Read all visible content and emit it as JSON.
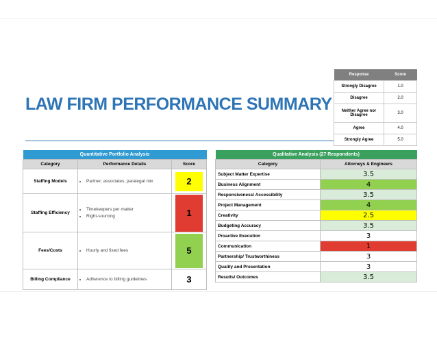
{
  "title": "LAW FIRM PERFORMANCE SUMMARY",
  "colors": {
    "title": "#2e75b6",
    "score_green_light": "#d8ecd9",
    "score_green": "#92d050",
    "score_yellow": "#ffff00",
    "score_red": "#e03c31"
  },
  "score_key": {
    "headers": [
      "Response",
      "Score"
    ],
    "rows": [
      {
        "response": "Strongly Disagree",
        "score": "1.0"
      },
      {
        "response": "Disagree",
        "score": "2.0"
      },
      {
        "response": "Neither Agree nor Disagree",
        "score": "3.0"
      },
      {
        "response": "Agree",
        "score": "4.0"
      },
      {
        "response": "Strongly Agree",
        "score": "5.0"
      }
    ]
  },
  "quantitative": {
    "title": "Quantitative  Portfolio Analysis",
    "headers": [
      "Category",
      "Performance Details",
      "Score"
    ],
    "rows": [
      {
        "category": "Staffing Models",
        "details": [
          "Partner, associates, paralegal mix"
        ],
        "score": "2",
        "color": "#ffff00"
      },
      {
        "category": "Staffing Efficiency",
        "details": [
          "Timekeepers per matter",
          "Right-sourcing"
        ],
        "score": "1",
        "color": "#e03c31"
      },
      {
        "category": "Fees/Costs",
        "details": [
          "Hourly and fixed fees"
        ],
        "score": "5",
        "color": "#92d050"
      },
      {
        "category": "Billing Compliance",
        "details": [
          "Adherence to billing guidelines"
        ],
        "score": "3",
        "color": "#ffffff"
      }
    ]
  },
  "qualitative": {
    "title": "Qualitative Analysis (27 Respondents)",
    "headers": [
      "Category",
      "Attorneys & Engineers"
    ],
    "rows": [
      {
        "category": "Subject Matter Expertise",
        "score": "3.5",
        "color": "#d8ecd9"
      },
      {
        "category": "Business Alignment",
        "score": "4",
        "color": "#92d050"
      },
      {
        "category": "Responsiveness/ Accessibility",
        "score": "3.5",
        "color": "#d8ecd9"
      },
      {
        "category": "Project Management",
        "score": "4",
        "color": "#92d050"
      },
      {
        "category": "Creativity",
        "score": "2.5",
        "color": "#ffff00"
      },
      {
        "category": "Budgeting Accuracy",
        "score": "3.5",
        "color": "#d8ecd9"
      },
      {
        "category": "Proactive Execution",
        "score": "3",
        "color": "#ffffff"
      },
      {
        "category": "Communication",
        "score": "1",
        "color": "#e03c31"
      },
      {
        "category": "Partnership/ Trustworthiness",
        "score": "3",
        "color": "#ffffff"
      },
      {
        "category": "Quality and Presentation",
        "score": "3",
        "color": "#ffffff"
      },
      {
        "category": "Results/ Outcomes",
        "score": "3.5",
        "color": "#d8ecd9"
      }
    ]
  }
}
